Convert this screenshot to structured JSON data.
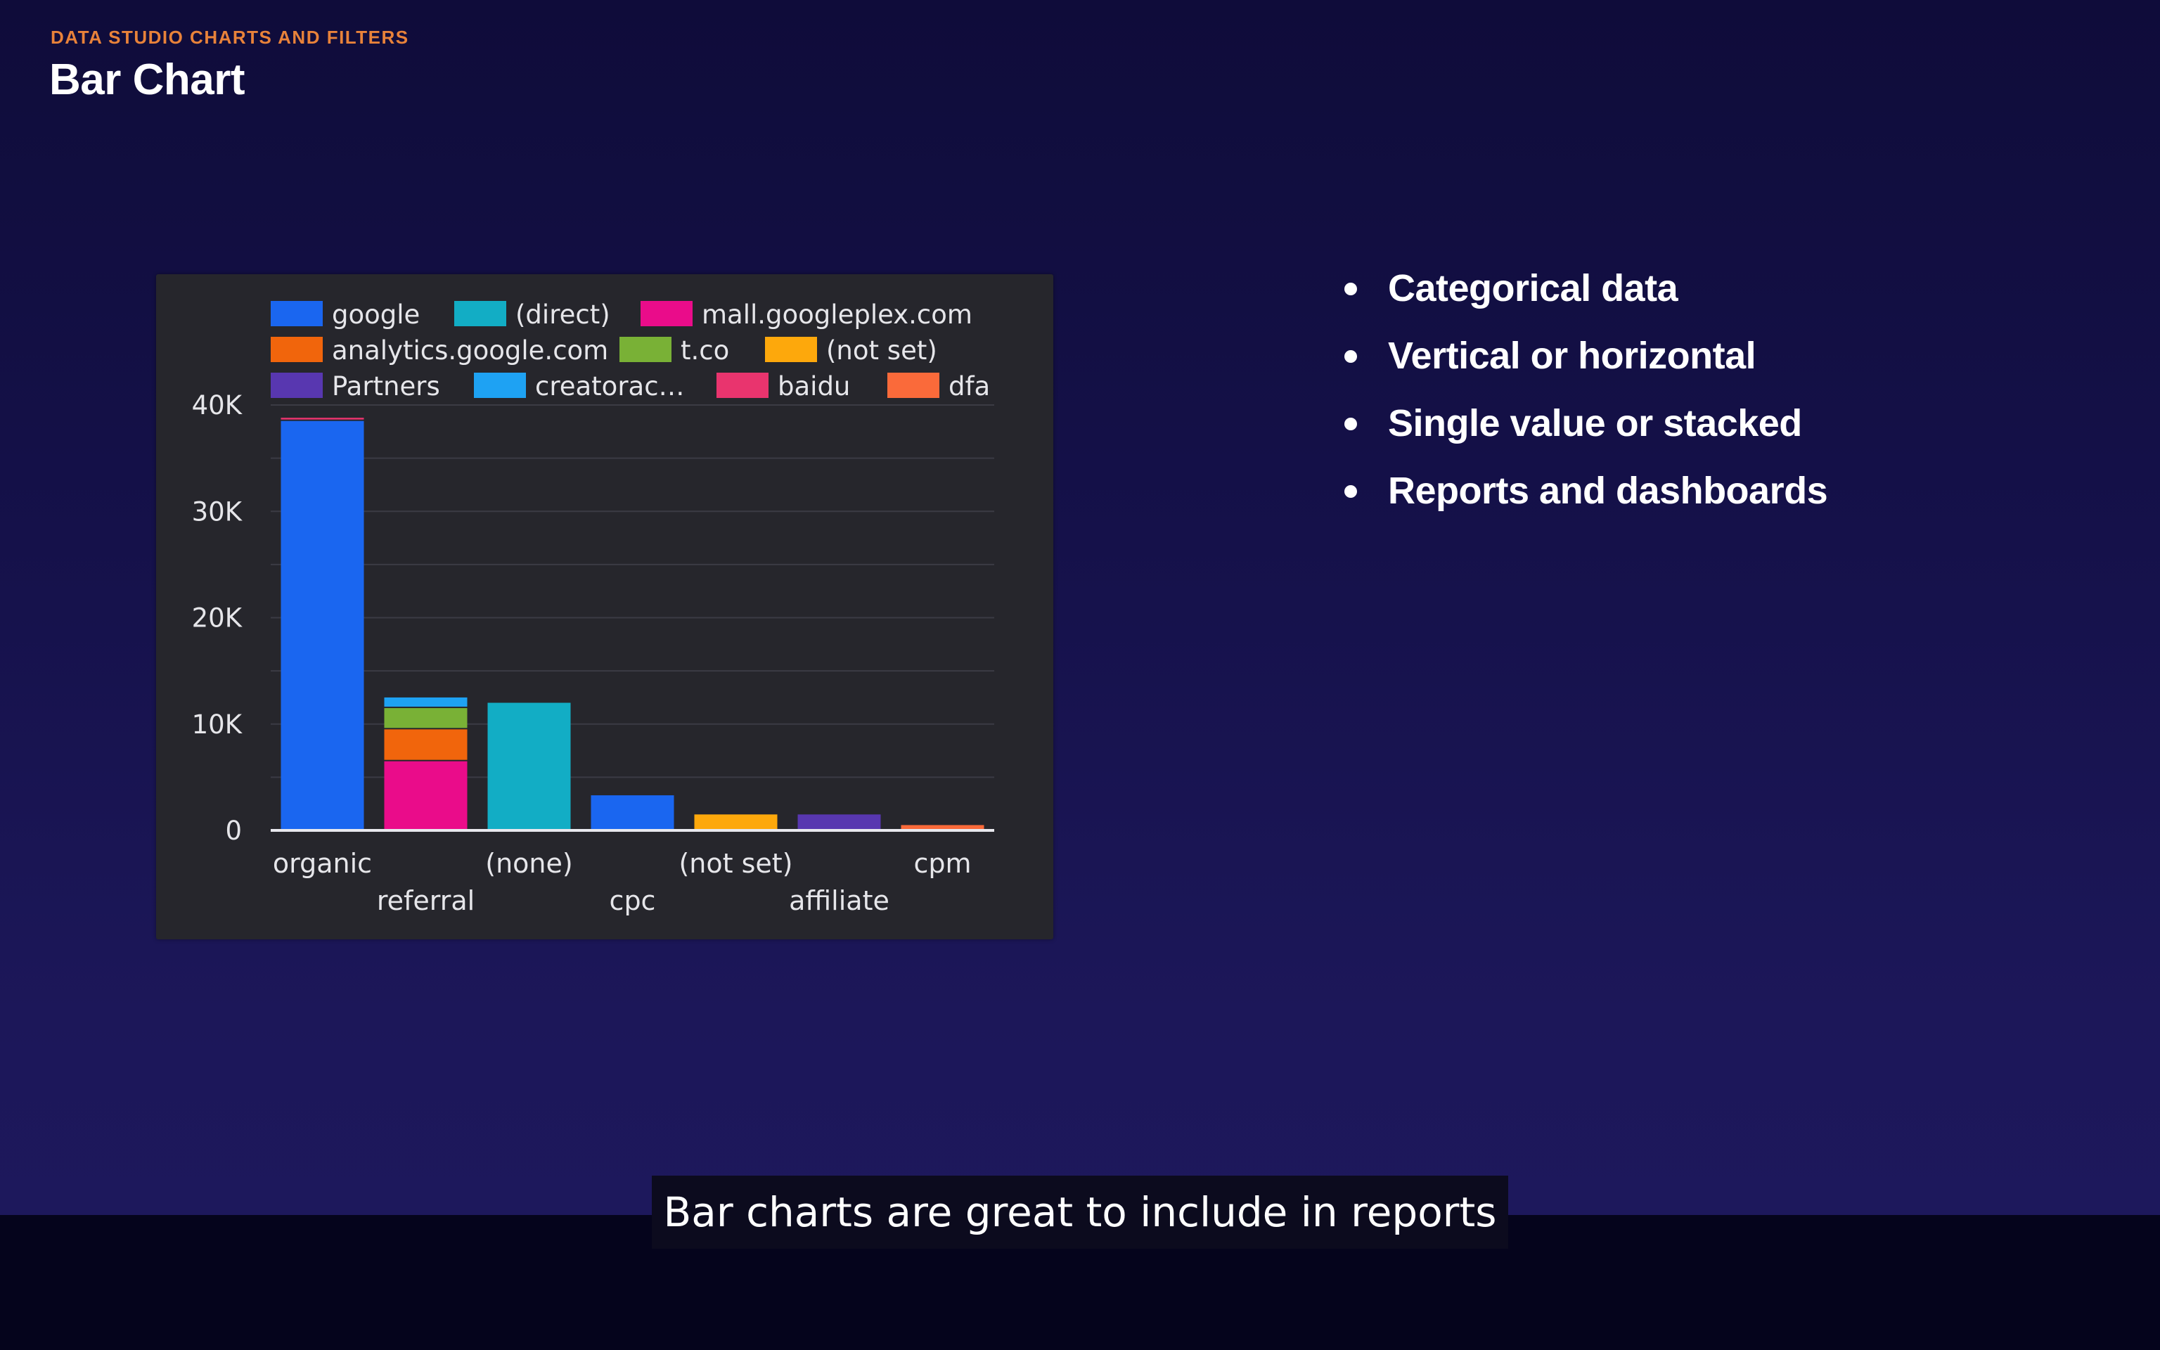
{
  "header": {
    "kicker": "DATA STUDIO CHARTS AND FILTERS",
    "title": "Bar Chart"
  },
  "bullets": [
    "Categorical data",
    "Vertical or horizontal",
    "Single value or stacked",
    "Reports and dashboards"
  ],
  "caption": "Bar charts are great to include in reports",
  "chart_data": {
    "type": "bar",
    "stacked": true,
    "title": "",
    "xlabel": "",
    "ylabel": "",
    "ylim": [
      0,
      40000
    ],
    "yticks": [
      0,
      10000,
      20000,
      30000,
      40000
    ],
    "ytick_labels": [
      "0",
      "10K",
      "20K",
      "30K",
      "40K"
    ],
    "grid": true,
    "legend_position": "top",
    "categories": [
      "organic",
      "referral",
      "(none)",
      "cpc",
      "(not set)",
      "affiliate",
      "cpm"
    ],
    "series": [
      {
        "name": "google",
        "color": "#1a66f0",
        "values": [
          38500,
          0,
          0,
          3300,
          0,
          0,
          0
        ]
      },
      {
        "name": "(direct)",
        "color": "#12adc5",
        "values": [
          0,
          0,
          12000,
          0,
          0,
          0,
          0
        ]
      },
      {
        "name": "mall.googleplex.com",
        "color": "#ea0c8a",
        "values": [
          0,
          6500,
          0,
          0,
          0,
          0,
          0
        ]
      },
      {
        "name": "analytics.google.com",
        "color": "#f1650c",
        "values": [
          0,
          3000,
          0,
          0,
          0,
          0,
          0
        ]
      },
      {
        "name": "t.co",
        "color": "#79b136",
        "values": [
          0,
          2000,
          0,
          0,
          0,
          0,
          0
        ]
      },
      {
        "name": "(not set)",
        "color": "#fda80c",
        "values": [
          0,
          0,
          0,
          0,
          1500,
          0,
          0
        ]
      },
      {
        "name": "Partners",
        "color": "#5837b0",
        "values": [
          0,
          0,
          0,
          0,
          0,
          1500,
          0
        ]
      },
      {
        "name": "creatorac…",
        "color": "#1ea2f3",
        "values": [
          0,
          1000,
          0,
          0,
          0,
          0,
          0
        ]
      },
      {
        "name": "baidu",
        "color": "#e9346e",
        "values": [
          300,
          0,
          0,
          0,
          0,
          0,
          0
        ]
      },
      {
        "name": "dfa",
        "color": "#fa6a3a",
        "values": [
          0,
          0,
          0,
          0,
          0,
          0,
          500
        ]
      }
    ]
  }
}
